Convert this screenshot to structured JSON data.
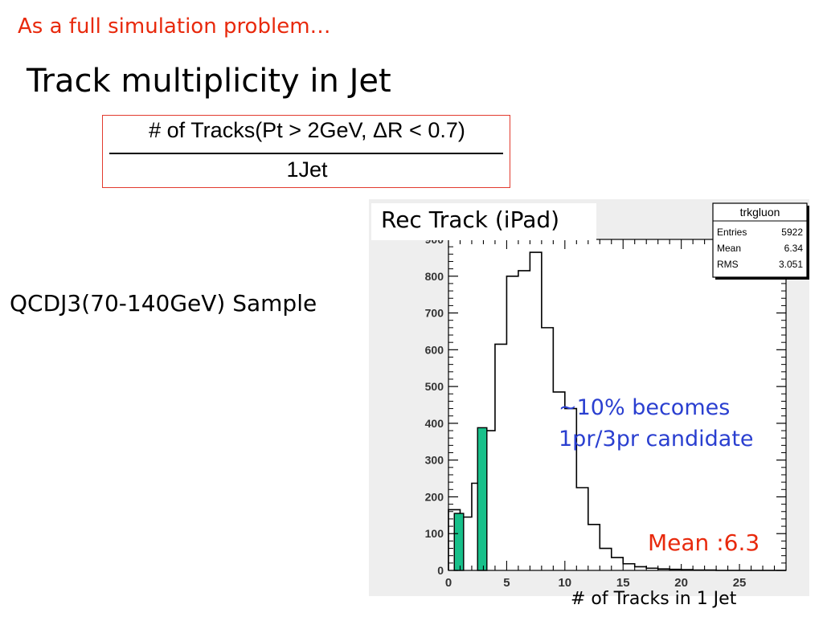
{
  "slide": {
    "subtitle": "As a full simulation problem…",
    "title": "Track multiplicity in Jet",
    "formula": {
      "numerator": "# of Tracks(Pt > 2GeV, ΔR < 0.7)",
      "denominator": "1Jet"
    },
    "sample_label": "QCDJ3(70-140GeV) Sample",
    "note_line1": "~10% becomes",
    "note_line2": "1pr/3pr candidate",
    "mean_box": "Mean :6.3"
  },
  "stats_box": {
    "name": "trkgluon",
    "rows": [
      {
        "label": "Entries",
        "value": "5922"
      },
      {
        "label": "Mean",
        "value": "6.34"
      },
      {
        "label": "RMS",
        "value": "3.051"
      }
    ]
  },
  "chart_data": {
    "type": "bar",
    "title": "Rec Track (iPad)",
    "xlabel": "# of Tracks in 1 Jet",
    "ylabel": "",
    "xlim": [
      0,
      29
    ],
    "ylim": [
      0,
      900
    ],
    "x_ticks": [
      0,
      5,
      10,
      15,
      20,
      25
    ],
    "y_ticks": [
      0,
      100,
      200,
      300,
      400,
      500,
      600,
      700,
      800,
      900
    ],
    "bin_width": 1,
    "series": [
      {
        "name": "",
        "style": "step-outline",
        "color": "#000000",
        "bin_starts": [
          0,
          1,
          2,
          3,
          4,
          5,
          6,
          7,
          8,
          9,
          10,
          11,
          12,
          13,
          14,
          15,
          16,
          17,
          18,
          19,
          20,
          21,
          22,
          23,
          24,
          25,
          26,
          27,
          28
        ],
        "values": [
          165,
          145,
          237,
          380,
          615,
          800,
          815,
          865,
          660,
          485,
          440,
          225,
          125,
          60,
          35,
          18,
          10,
          6,
          4,
          3,
          2,
          1,
          1,
          0,
          0,
          0,
          0,
          0,
          0
        ]
      },
      {
        "name": "",
        "style": "filled",
        "color": "#18c08a",
        "bin_starts": [
          0.5,
          2.5
        ],
        "bar_width": 0.8,
        "values": [
          155,
          388
        ]
      }
    ]
  }
}
